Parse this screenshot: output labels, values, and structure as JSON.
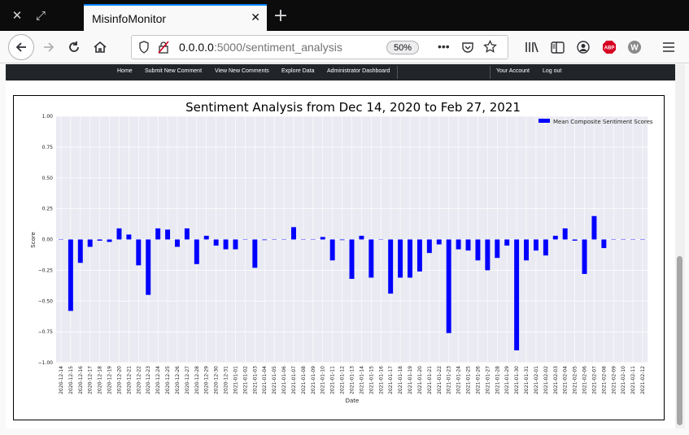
{
  "browser": {
    "tab_title": "MisinfoMonitor",
    "url_host": "0.0.0.0",
    "url_path": ":5000/sentiment_analysis",
    "zoom": "50%",
    "icons": [
      "close-icon",
      "restore-icon",
      "back-arrow-icon",
      "forward-arrow-icon",
      "reload-icon",
      "home-icon",
      "shield-icon",
      "insecure-lock-icon",
      "more-icon",
      "pocket-icon",
      "star-icon",
      "library-icon",
      "sidebar-icon",
      "account-icon",
      "adblock-icon",
      "extension-w-icon",
      "hamburger-menu-icon"
    ]
  },
  "nav": {
    "home": "Home",
    "submit": "Submit New Comment",
    "view": "View New Comments",
    "explore": "Explore Data",
    "admin": "Administrator Dashboard",
    "account": "Your Account",
    "logout": "Log out"
  },
  "chart_data": {
    "type": "bar",
    "title": "Sentiment Analysis from Dec 14, 2020 to Feb 27, 2021",
    "xlabel": "Date",
    "ylabel": "Score",
    "ylim": [
      -1.0,
      1.0
    ],
    "yticks": [
      "1.00",
      "0.75",
      "0.50",
      "0.25",
      "0.00",
      "−0.25",
      "−0.50",
      "−0.75",
      "−1.00"
    ],
    "grid": true,
    "legend_position": "top-right",
    "bar_color": "#0000ff",
    "background": "#eaeaf2",
    "series": [
      {
        "name": "Mean Composite Sentiment Scores"
      }
    ],
    "categories": [
      "2020-12-14",
      "2020-12-15",
      "2020-12-16",
      "2020-12-17",
      "2020-12-18",
      "2020-12-19",
      "2020-12-20",
      "2020-12-21",
      "2020-12-22",
      "2020-12-23",
      "2020-12-24",
      "2020-12-25",
      "2020-12-26",
      "2020-12-27",
      "2020-12-28",
      "2020-12-29",
      "2020-12-30",
      "2020-12-31",
      "2021-01-01",
      "2021-01-02",
      "2021-01-03",
      "2021-01-04",
      "2021-01-05",
      "2021-01-06",
      "2021-01-07",
      "2021-01-08",
      "2021-01-09",
      "2021-01-10",
      "2021-01-11",
      "2021-01-12",
      "2021-01-13",
      "2021-01-14",
      "2021-01-15",
      "2021-01-16",
      "2021-01-17",
      "2021-01-18",
      "2021-01-19",
      "2021-01-20",
      "2021-01-21",
      "2021-01-22",
      "2021-01-23",
      "2021-01-24",
      "2021-01-25",
      "2021-01-26",
      "2021-01-27",
      "2021-01-28",
      "2021-01-29",
      "2021-01-30",
      "2021-01-31",
      "2021-02-01",
      "2021-02-02",
      "2021-02-03",
      "2021-02-04",
      "2021-02-05",
      "2021-02-06",
      "2021-02-07",
      "2021-02-08",
      "2021-02-09",
      "2021-02-10",
      "2021-02-11",
      "2021-02-12"
    ],
    "values": [
      0,
      -0.58,
      -0.19,
      -0.06,
      -0.01,
      -0.02,
      0.09,
      0.04,
      -0.21,
      -0.45,
      0.09,
      0.08,
      -0.06,
      0.09,
      -0.2,
      0.03,
      -0.05,
      -0.08,
      -0.08,
      0,
      -0.23,
      -0.005,
      0,
      0,
      0.1,
      0,
      0,
      0.02,
      -0.17,
      -0.005,
      -0.32,
      0.03,
      -0.31,
      0,
      -0.44,
      -0.31,
      -0.31,
      -0.26,
      -0.11,
      -0.04,
      -0.76,
      -0.08,
      -0.09,
      -0.17,
      -0.25,
      -0.15,
      -0.05,
      -0.9,
      -0.17,
      -0.09,
      -0.13,
      0.03,
      0.09,
      -0.01,
      -0.28,
      0.19,
      -0.07,
      0,
      0,
      0,
      0
    ]
  }
}
